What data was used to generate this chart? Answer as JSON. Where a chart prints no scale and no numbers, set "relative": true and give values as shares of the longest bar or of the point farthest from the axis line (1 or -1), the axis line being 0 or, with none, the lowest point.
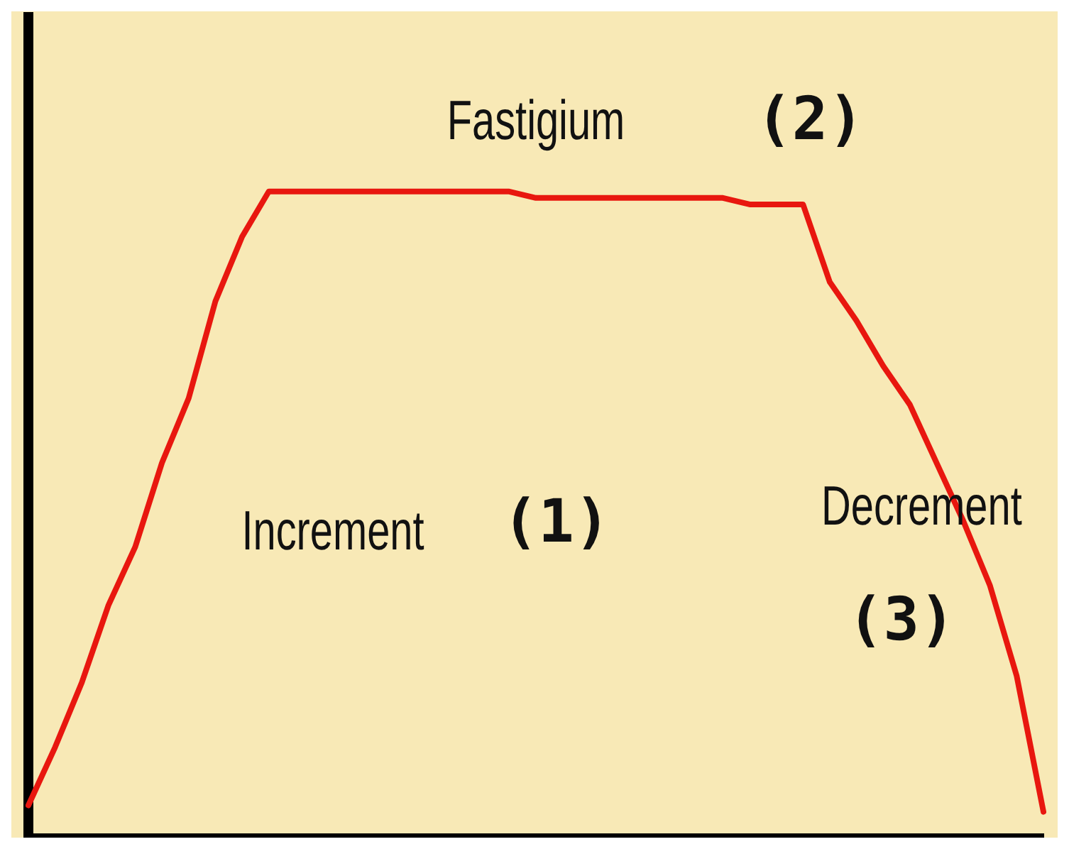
{
  "chart_data": {
    "type": "line",
    "relative": true,
    "categories": [
      null,
      null,
      null,
      null,
      null,
      null,
      null,
      null,
      null,
      null,
      null,
      null,
      null,
      null,
      null,
      null,
      null,
      null,
      null,
      null,
      null,
      null,
      null,
      null,
      null,
      null,
      null,
      null,
      null,
      null,
      null,
      null,
      null,
      null,
      null,
      null,
      null,
      null,
      null
    ],
    "series": [
      {
        "color": "#e8170f",
        "values": [
          0.05,
          0.14,
          0.24,
          0.36,
          0.45,
          0.58,
          0.68,
          0.83,
          0.93,
          1.0,
          1.0,
          1.0,
          1.0,
          1.0,
          1.0,
          1.0,
          1.0,
          1.0,
          1.0,
          0.99,
          0.99,
          0.99,
          0.99,
          0.99,
          0.99,
          0.99,
          0.99,
          0.98,
          0.98,
          0.98,
          0.86,
          0.8,
          0.73,
          0.67,
          0.58,
          0.49,
          0.39,
          0.25,
          0.04
        ]
      }
    ],
    "annotations": [
      "Fastigium",
      "(2)",
      "Increment",
      "(1)",
      "Decrement",
      "(3)"
    ],
    "grid": false,
    "legend": false,
    "marker": "none",
    "line_style": "solid"
  }
}
